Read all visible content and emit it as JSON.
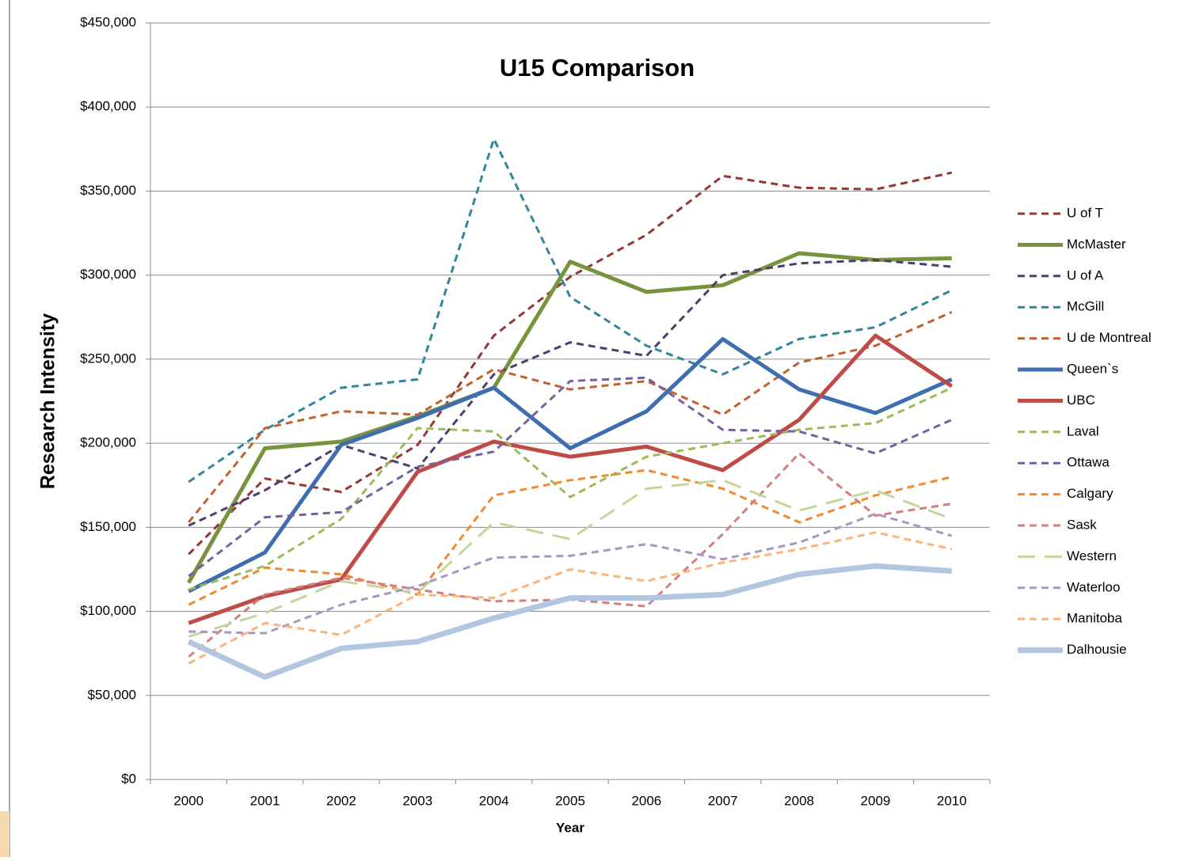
{
  "chart_data": {
    "type": "line",
    "title": "U15 Comparison",
    "x_label": "Year",
    "y_label": "Research Intensity",
    "categories": [
      "2000",
      "2001",
      "2002",
      "2003",
      "2004",
      "2005",
      "2006",
      "2007",
      "2008",
      "2009",
      "2010"
    ],
    "ylim": [
      0,
      450000
    ],
    "yticks": [
      {
        "value": 0,
        "label": "$0"
      },
      {
        "value": 50000,
        "label": "$50,000"
      },
      {
        "value": 100000,
        "label": "$100,000"
      },
      {
        "value": 150000,
        "label": "$150,000"
      },
      {
        "value": 200000,
        "label": "$200,000"
      },
      {
        "value": 250000,
        "label": "$250,000"
      },
      {
        "value": 300000,
        "label": "$300,000"
      },
      {
        "value": 350000,
        "label": "$350,000"
      },
      {
        "value": 400000,
        "label": "$400,000"
      },
      {
        "value": 450000,
        "label": "$450,000"
      }
    ],
    "grid": true,
    "legend": "right",
    "series": [
      {
        "name": "U of T",
        "color": "#953735",
        "style": "dashed",
        "width": 3,
        "values": [
          134000,
          179000,
          171000,
          199000,
          264000,
          299000,
          324000,
          359000,
          352000,
          351000,
          361000
        ]
      },
      {
        "name": "McMaster",
        "color": "#77933c",
        "style": "solid",
        "width": 5,
        "values": [
          117000,
          197000,
          201000,
          216000,
          233000,
          308000,
          290000,
          294000,
          313000,
          309000,
          310000
        ]
      },
      {
        "name": "U of A",
        "color": "#4f3d6e",
        "style": "dashed",
        "width": 3,
        "values": [
          151000,
          172000,
          199000,
          185000,
          241000,
          260000,
          252000,
          300000,
          307000,
          309000,
          305000
        ]
      },
      {
        "name": "McGill",
        "color": "#31859c",
        "style": "dashed",
        "width": 3,
        "values": [
          177000,
          208000,
          233000,
          238000,
          381000,
          287000,
          258000,
          241000,
          262000,
          269000,
          291000
        ]
      },
      {
        "name": "U de Montreal",
        "color": "#c0622f",
        "style": "dashed",
        "width": 3,
        "values": [
          153000,
          209000,
          219000,
          217000,
          244000,
          232000,
          237000,
          217000,
          248000,
          258000,
          278000
        ]
      },
      {
        "name": "Queen`s",
        "color": "#3f6eb0",
        "style": "solid",
        "width": 5,
        "values": [
          112000,
          135000,
          199000,
          215000,
          233000,
          197000,
          219000,
          262000,
          232000,
          218000,
          238000
        ]
      },
      {
        "name": "UBC",
        "color": "#be4b48",
        "style": "solid",
        "width": 5,
        "values": [
          93000,
          109000,
          119000,
          183000,
          201000,
          192000,
          198000,
          184000,
          214000,
          264000,
          234000
        ]
      },
      {
        "name": "Laval",
        "color": "#9bbb59",
        "style": "dashed",
        "width": 3,
        "values": [
          113000,
          127000,
          155000,
          209000,
          207000,
          168000,
          192000,
          200000,
          208000,
          212000,
          233000
        ]
      },
      {
        "name": "Ottawa",
        "color": "#7a5fa0",
        "style": "dashed",
        "width": 3,
        "values": [
          121000,
          156000,
          159000,
          186000,
          195000,
          237000,
          239000,
          208000,
          207000,
          194000,
          214000
        ]
      },
      {
        "name": "Calgary",
        "color": "#f08a30",
        "style": "dashed",
        "width": 3,
        "values": [
          104000,
          126000,
          122000,
          110000,
          169000,
          178000,
          184000,
          173000,
          153000,
          169000,
          180000
        ]
      },
      {
        "name": "Sask",
        "color": "#d08080",
        "style": "dashed",
        "width": 3,
        "values": [
          73000,
          110000,
          120000,
          113000,
          106000,
          107000,
          103000,
          146000,
          194000,
          157000,
          164000
        ]
      },
      {
        "name": "Western",
        "color": "#c3d69b",
        "style": "long-dash",
        "width": 3,
        "values": [
          85000,
          99000,
          118000,
          111000,
          153000,
          143000,
          173000,
          178000,
          160000,
          172000,
          155000
        ]
      },
      {
        "name": "Waterloo",
        "color": "#a896c4",
        "style": "dashed",
        "width": 3,
        "values": [
          88000,
          87000,
          104000,
          115000,
          132000,
          133000,
          140000,
          131000,
          141000,
          158000,
          145000
        ]
      },
      {
        "name": "Manitoba",
        "color": "#fab57a",
        "style": "dashed",
        "width": 3,
        "values": [
          69000,
          93000,
          86000,
          110000,
          108000,
          125000,
          118000,
          129000,
          137000,
          147000,
          137000
        ]
      },
      {
        "name": "Dalhousie",
        "color": "#b3c6e0",
        "style": "solid",
        "width": 7,
        "values": [
          82000,
          61000,
          78000,
          82000,
          96000,
          108000,
          108000,
          110000,
          122000,
          127000,
          124000
        ]
      }
    ]
  }
}
